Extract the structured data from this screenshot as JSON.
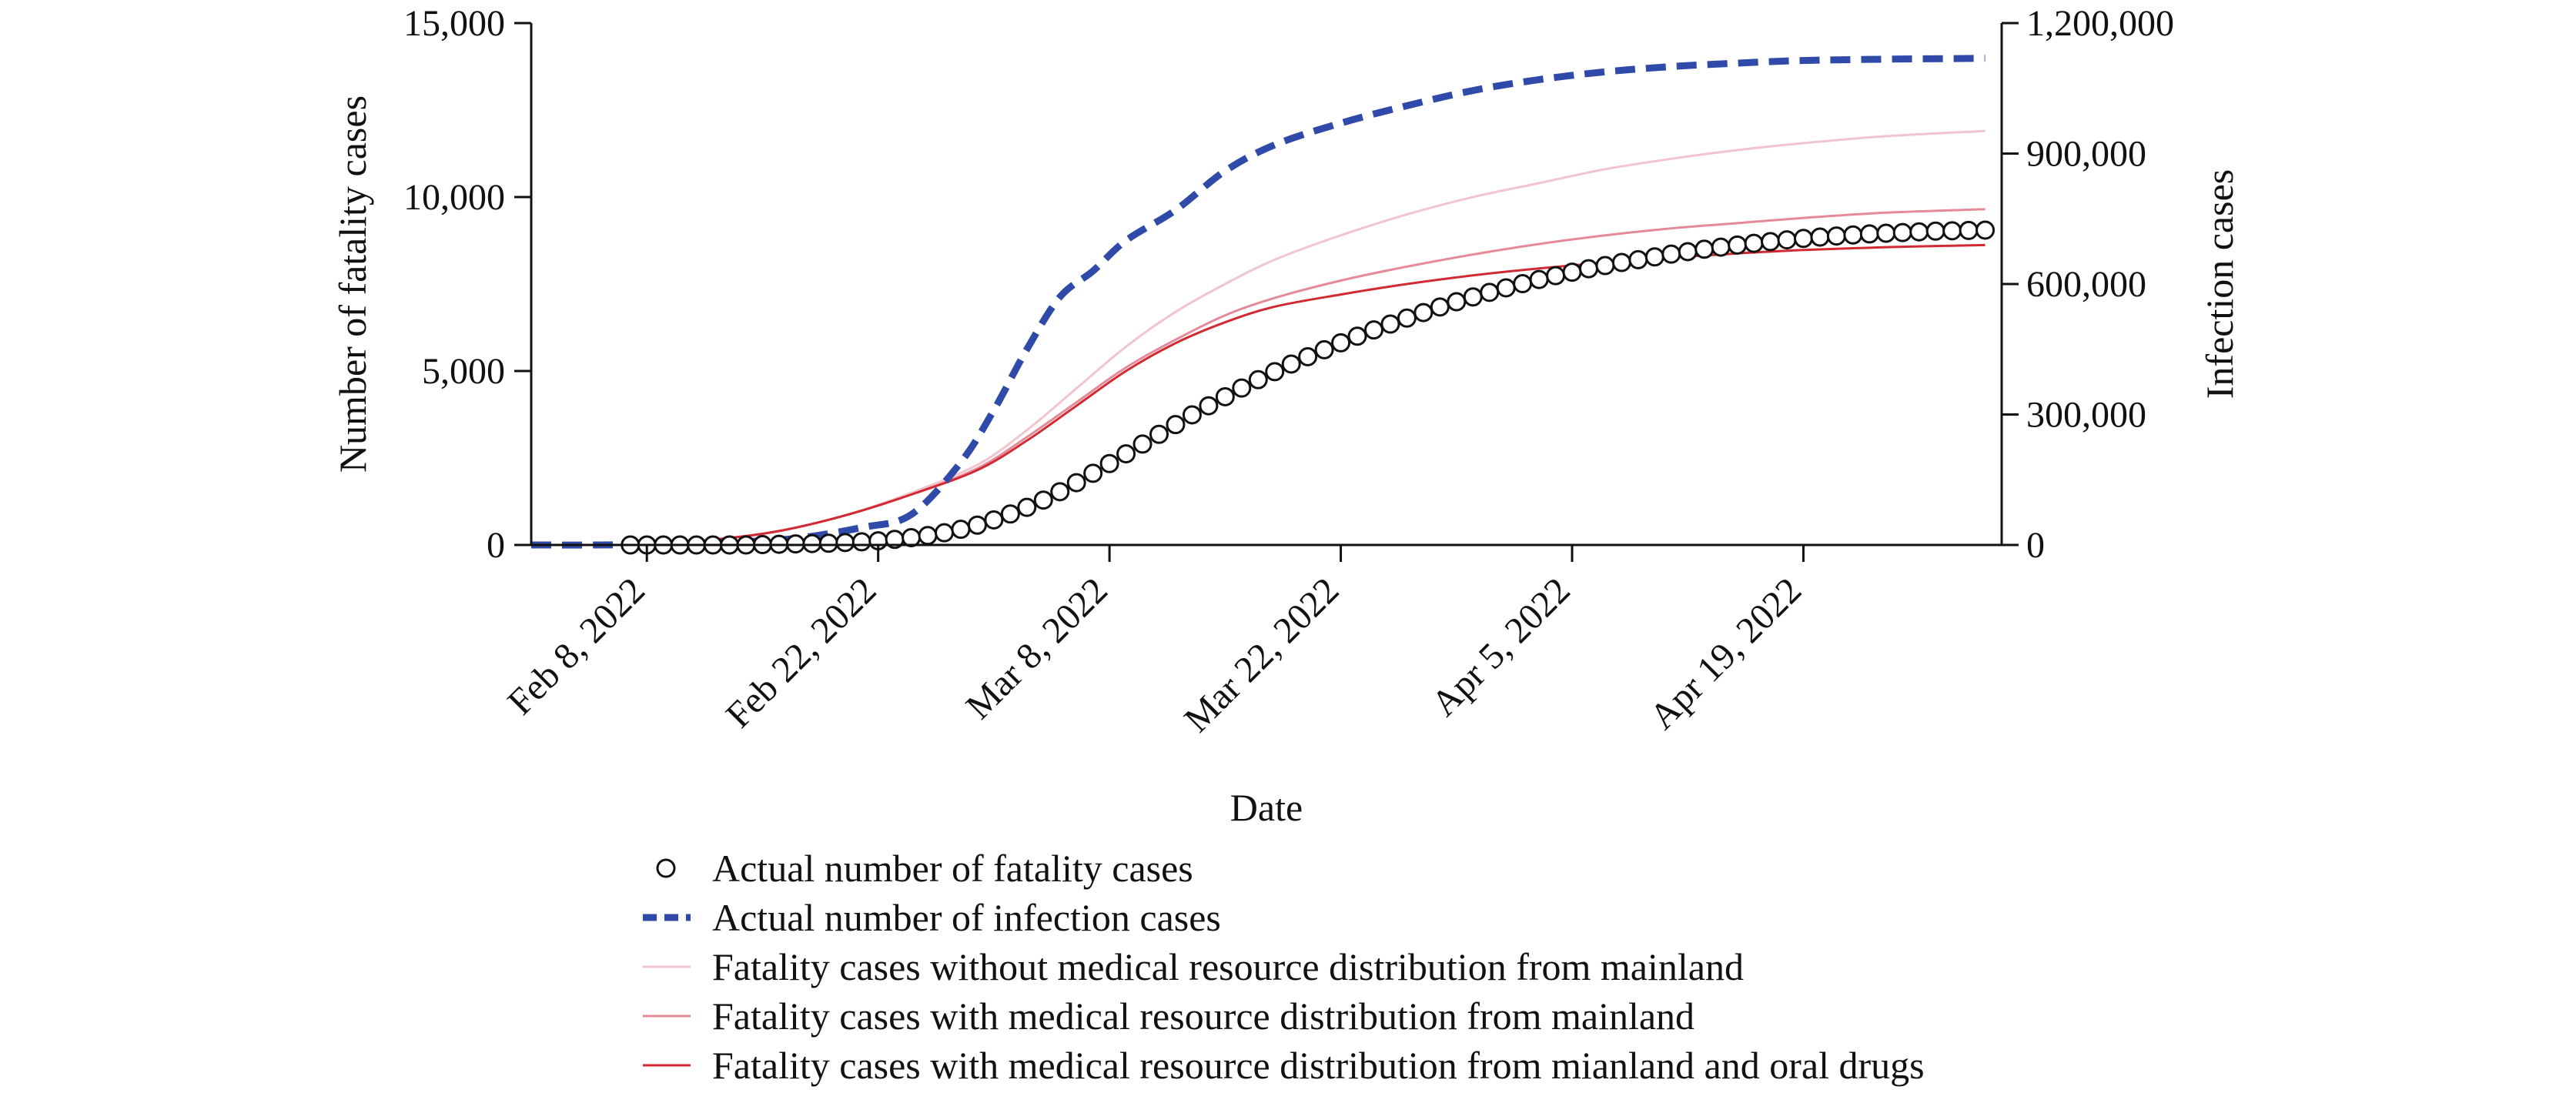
{
  "chart_data": {
    "type": "line",
    "xlabel": "Date",
    "ylabel_left": "Number of fatality cases",
    "ylabel_right": "Infection cases",
    "x_range": [
      "2022-02-01",
      "2022-05-01"
    ],
    "ylim_left": [
      0,
      15000
    ],
    "ylim_right": [
      0,
      1200000
    ],
    "x_tick_dates": [
      "2022-02-08",
      "2022-02-22",
      "2022-03-08",
      "2022-03-22",
      "2022-04-05",
      "2022-04-19"
    ],
    "x_tick_labels": [
      "Feb 8, 2022",
      "Feb 22, 2022",
      "Mar 8, 2022",
      "Mar 22, 2022",
      "Apr 5, 2022",
      "Apr 19, 2022"
    ],
    "y_left_tick_values": [
      0,
      5000,
      10000,
      15000
    ],
    "y_left_tick_labels": [
      "0",
      "5,000",
      "10,000",
      "15,000"
    ],
    "y_right_tick_values": [
      0,
      300000,
      600000,
      900000,
      1200000
    ],
    "y_right_tick_labels": [
      "0",
      "300,000",
      "600,000",
      "900,000",
      "1,200,000"
    ],
    "grid": false,
    "legend_position": "bottom",
    "series": [
      {
        "name": "Actual number of fatality cases",
        "axis": "left",
        "style": "markers",
        "color": "#111111",
        "points": [
          [
            "2022-02-07",
            0
          ],
          [
            "2022-02-08",
            0
          ],
          [
            "2022-02-09",
            0
          ],
          [
            "2022-02-10",
            0
          ],
          [
            "2022-02-11",
            0
          ],
          [
            "2022-02-12",
            0
          ],
          [
            "2022-02-13",
            0
          ],
          [
            "2022-02-14",
            0
          ],
          [
            "2022-02-15",
            10
          ],
          [
            "2022-02-16",
            20
          ],
          [
            "2022-02-17",
            30
          ],
          [
            "2022-02-18",
            40
          ],
          [
            "2022-02-19",
            50
          ],
          [
            "2022-02-20",
            70
          ],
          [
            "2022-02-21",
            90
          ],
          [
            "2022-02-22",
            120
          ],
          [
            "2022-02-23",
            160
          ],
          [
            "2022-02-24",
            210
          ],
          [
            "2022-02-25",
            270
          ],
          [
            "2022-02-26",
            350
          ],
          [
            "2022-02-27",
            450
          ],
          [
            "2022-02-28",
            570
          ],
          [
            "2022-03-01",
            720
          ],
          [
            "2022-03-02",
            890
          ],
          [
            "2022-03-03",
            1080
          ],
          [
            "2022-03-04",
            1290
          ],
          [
            "2022-03-05",
            1530
          ],
          [
            "2022-03-06",
            1790
          ],
          [
            "2022-03-07",
            2060
          ],
          [
            "2022-03-08",
            2340
          ],
          [
            "2022-03-09",
            2620
          ],
          [
            "2022-03-10",
            2900
          ],
          [
            "2022-03-11",
            3180
          ],
          [
            "2022-03-12",
            3460
          ],
          [
            "2022-03-13",
            3740
          ],
          [
            "2022-03-14",
            4000
          ],
          [
            "2022-03-15",
            4260
          ],
          [
            "2022-03-16",
            4510
          ],
          [
            "2022-03-17",
            4750
          ],
          [
            "2022-03-18",
            4980
          ],
          [
            "2022-03-19",
            5200
          ],
          [
            "2022-03-20",
            5410
          ],
          [
            "2022-03-21",
            5610
          ],
          [
            "2022-03-22",
            5810
          ],
          [
            "2022-03-23",
            6000
          ],
          [
            "2022-03-24",
            6180
          ],
          [
            "2022-03-25",
            6350
          ],
          [
            "2022-03-26",
            6520
          ],
          [
            "2022-03-27",
            6680
          ],
          [
            "2022-03-28",
            6840
          ],
          [
            "2022-03-29",
            6990
          ],
          [
            "2022-03-30",
            7130
          ],
          [
            "2022-03-31",
            7260
          ],
          [
            "2022-04-01",
            7390
          ],
          [
            "2022-04-02",
            7510
          ],
          [
            "2022-04-03",
            7630
          ],
          [
            "2022-04-04",
            7740
          ],
          [
            "2022-04-05",
            7840
          ],
          [
            "2022-04-06",
            7940
          ],
          [
            "2022-04-07",
            8030
          ],
          [
            "2022-04-08",
            8120
          ],
          [
            "2022-04-09",
            8200
          ],
          [
            "2022-04-10",
            8280
          ],
          [
            "2022-04-11",
            8360
          ],
          [
            "2022-04-12",
            8430
          ],
          [
            "2022-04-13",
            8500
          ],
          [
            "2022-04-14",
            8560
          ],
          [
            "2022-04-15",
            8620
          ],
          [
            "2022-04-16",
            8670
          ],
          [
            "2022-04-17",
            8720
          ],
          [
            "2022-04-18",
            8770
          ],
          [
            "2022-04-19",
            8810
          ],
          [
            "2022-04-20",
            8850
          ],
          [
            "2022-04-21",
            8880
          ],
          [
            "2022-04-22",
            8910
          ],
          [
            "2022-04-23",
            8940
          ],
          [
            "2022-04-24",
            8960
          ],
          [
            "2022-04-25",
            8980
          ],
          [
            "2022-04-26",
            9000
          ],
          [
            "2022-04-27",
            9020
          ],
          [
            "2022-04-28",
            9030
          ],
          [
            "2022-04-29",
            9040
          ],
          [
            "2022-04-30",
            9050
          ]
        ]
      },
      {
        "name": "Actual number of infection cases",
        "axis": "right",
        "style": "dashed",
        "color": "#2f4aa8",
        "points": [
          [
            "2022-02-01",
            0
          ],
          [
            "2022-02-05",
            0
          ],
          [
            "2022-02-09",
            2000
          ],
          [
            "2022-02-13",
            6000
          ],
          [
            "2022-02-17",
            15000
          ],
          [
            "2022-02-21",
            40000
          ],
          [
            "2022-02-24",
            70000
          ],
          [
            "2022-02-27",
            190000
          ],
          [
            "2022-03-01",
            310000
          ],
          [
            "2022-03-03",
            450000
          ],
          [
            "2022-03-05",
            570000
          ],
          [
            "2022-03-07",
            630000
          ],
          [
            "2022-03-09",
            700000
          ],
          [
            "2022-03-12",
            770000
          ],
          [
            "2022-03-15",
            860000
          ],
          [
            "2022-03-18",
            920000
          ],
          [
            "2022-03-22",
            970000
          ],
          [
            "2022-03-26",
            1010000
          ],
          [
            "2022-03-30",
            1045000
          ],
          [
            "2022-04-03",
            1070000
          ],
          [
            "2022-04-07",
            1088000
          ],
          [
            "2022-04-11",
            1100000
          ],
          [
            "2022-04-15",
            1108000
          ],
          [
            "2022-04-19",
            1114000
          ],
          [
            "2022-04-24",
            1117000
          ],
          [
            "2022-04-30",
            1119000
          ]
        ]
      },
      {
        "name": "Fatality cases without medical resource distribution from mainland",
        "axis": "left",
        "style": "line",
        "color": "#f2c4cd",
        "points": [
          [
            "2022-02-08",
            0
          ],
          [
            "2022-02-12",
            150
          ],
          [
            "2022-02-16",
            400
          ],
          [
            "2022-02-20",
            850
          ],
          [
            "2022-02-24",
            1500
          ],
          [
            "2022-02-28",
            2300
          ],
          [
            "2022-03-03",
            3300
          ],
          [
            "2022-03-06",
            4500
          ],
          [
            "2022-03-09",
            5700
          ],
          [
            "2022-03-12",
            6700
          ],
          [
            "2022-03-15",
            7500
          ],
          [
            "2022-03-18",
            8200
          ],
          [
            "2022-03-22",
            8900
          ],
          [
            "2022-03-26",
            9500
          ],
          [
            "2022-03-30",
            10000
          ],
          [
            "2022-04-03",
            10400
          ],
          [
            "2022-04-07",
            10800
          ],
          [
            "2022-04-11",
            11100
          ],
          [
            "2022-04-15",
            11350
          ],
          [
            "2022-04-19",
            11550
          ],
          [
            "2022-04-24",
            11750
          ],
          [
            "2022-04-30",
            11900
          ]
        ]
      },
      {
        "name": "Fatality cases with medical resource distribution from mainland",
        "axis": "left",
        "style": "line",
        "color": "#e58a98",
        "points": [
          [
            "2022-02-08",
            0
          ],
          [
            "2022-02-12",
            150
          ],
          [
            "2022-02-16",
            400
          ],
          [
            "2022-02-20",
            850
          ],
          [
            "2022-02-24",
            1450
          ],
          [
            "2022-02-28",
            2200
          ],
          [
            "2022-03-03",
            3100
          ],
          [
            "2022-03-06",
            4100
          ],
          [
            "2022-03-09",
            5100
          ],
          [
            "2022-03-12",
            5900
          ],
          [
            "2022-03-15",
            6600
          ],
          [
            "2022-03-18",
            7100
          ],
          [
            "2022-03-22",
            7600
          ],
          [
            "2022-03-26",
            8000
          ],
          [
            "2022-03-30",
            8350
          ],
          [
            "2022-04-03",
            8650
          ],
          [
            "2022-04-07",
            8900
          ],
          [
            "2022-04-11",
            9100
          ],
          [
            "2022-04-15",
            9250
          ],
          [
            "2022-04-19",
            9400
          ],
          [
            "2022-04-24",
            9550
          ],
          [
            "2022-04-30",
            9650
          ]
        ]
      },
      {
        "name": "Fatality cases with medical resource distribution from mianland and oral drugs",
        "axis": "left",
        "style": "line",
        "color": "#d12a33",
        "points": [
          [
            "2022-02-08",
            0
          ],
          [
            "2022-02-12",
            150
          ],
          [
            "2022-02-16",
            400
          ],
          [
            "2022-02-20",
            850
          ],
          [
            "2022-02-24",
            1450
          ],
          [
            "2022-02-28",
            2150
          ],
          [
            "2022-03-03",
            3000
          ],
          [
            "2022-03-06",
            4000
          ],
          [
            "2022-03-09",
            5000
          ],
          [
            "2022-03-12",
            5800
          ],
          [
            "2022-03-15",
            6400
          ],
          [
            "2022-03-18",
            6850
          ],
          [
            "2022-03-22",
            7200
          ],
          [
            "2022-03-26",
            7500
          ],
          [
            "2022-03-30",
            7750
          ],
          [
            "2022-04-03",
            7950
          ],
          [
            "2022-04-07",
            8120
          ],
          [
            "2022-04-11",
            8260
          ],
          [
            "2022-04-15",
            8380
          ],
          [
            "2022-04-19",
            8480
          ],
          [
            "2022-04-24",
            8560
          ],
          [
            "2022-04-30",
            8620
          ]
        ]
      }
    ]
  }
}
